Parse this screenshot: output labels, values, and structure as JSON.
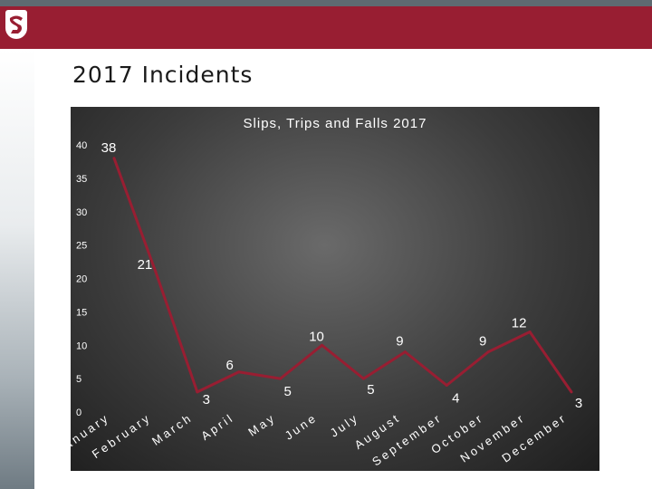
{
  "slide": {
    "title": "2017 Incidents"
  },
  "logo": {
    "name": "university-logo"
  },
  "colors": {
    "banner": "#981e32",
    "line": "#981e32",
    "panel": "#3c3c3c",
    "text": "#ffffff"
  },
  "chart_data": {
    "type": "line",
    "title": "Slips, Trips and Falls 2017",
    "categories": [
      "January",
      "February",
      "March",
      "April",
      "May",
      "June",
      "July",
      "August",
      "September",
      "October",
      "November",
      "December"
    ],
    "series": [
      {
        "values": [
          38,
          21,
          3,
          6,
          5,
          10,
          5,
          9,
          4,
          9,
          12,
          3
        ]
      }
    ],
    "ylim": [
      0,
      40
    ],
    "yticks": [
      0,
      5,
      10,
      15,
      20,
      25,
      30,
      35,
      40
    ],
    "grid": false,
    "legend": "none",
    "data_labels": true
  }
}
